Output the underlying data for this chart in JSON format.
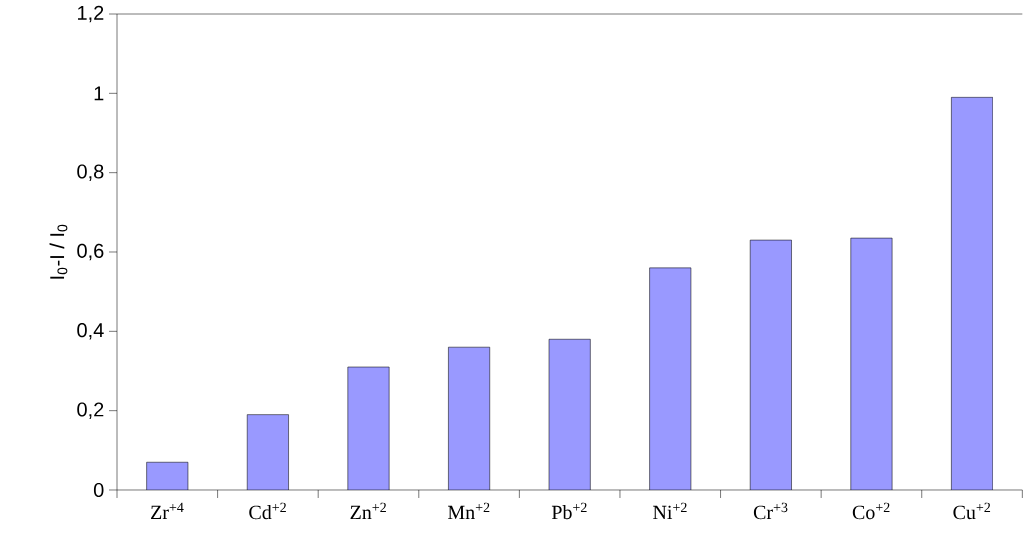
{
  "chart_data": {
    "type": "bar",
    "ylabel": "I$_{0}$-I / I$_{0}$",
    "categories": [
      "Zr$^{+4}$",
      "Cd$^{+2}$",
      "Zn$^{+2}$",
      "Mn$^{+2}$",
      "Pb$^{+2}$",
      "Ni$^{+2}$",
      "Cr$^{+3}$",
      "Co$^{+2}$",
      "Cu$^{+2}$"
    ],
    "values": [
      0.07,
      0.19,
      0.31,
      0.36,
      0.38,
      0.56,
      0.63,
      0.635,
      0.99
    ],
    "color": "#9999ff",
    "ylim": [
      0,
      1.2
    ],
    "yticks": [
      0,
      {
        "value": 0.2,
        "label": "0,2"
      },
      {
        "value": 0.4,
        "label": "0,4"
      },
      {
        "value": 0.6,
        "label": "0,6"
      },
      {
        "value": 0.8,
        "label": "0,8"
      },
      1,
      {
        "value": 1.2,
        "label": "1,2"
      }
    ]
  }
}
